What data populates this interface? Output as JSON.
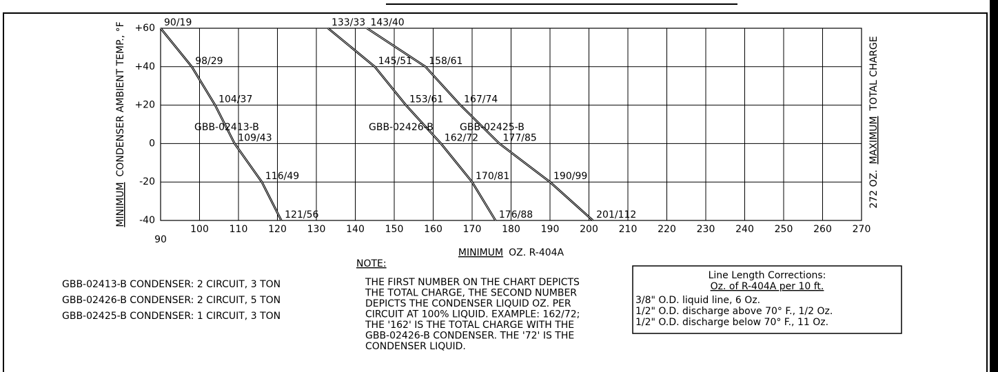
{
  "chart_data": {
    "type": "line",
    "y_label_underlined": "MINIMUM",
    "y_label_rest": "CONDENSER AMBIENT TEMP., °F",
    "y2_label_start": "272 OZ.",
    "y2_label_underlined": "MAXIMUM",
    "y2_label_end": "TOTAL CHARGE",
    "x_label_underlined": "MINIMUM",
    "x_label_rest": "OZ. R-404A",
    "xlim": [
      90,
      270
    ],
    "xticks": [
      90,
      100,
      110,
      120,
      130,
      140,
      150,
      160,
      170,
      180,
      190,
      200,
      210,
      220,
      230,
      240,
      250,
      260,
      270
    ],
    "ylim": [
      -40,
      60
    ],
    "yticks": [
      {
        "value": 60,
        "label": "+60"
      },
      {
        "value": 40,
        "label": "+40"
      },
      {
        "value": 20,
        "label": "+20"
      },
      0,
      -20,
      -40
    ],
    "grid": true,
    "color": "#000000",
    "series": [
      {
        "name": "GBB-02413-B",
        "x": [
          90,
          98,
          104,
          109,
          116,
          121
        ],
        "values": [
          60,
          40,
          20,
          0,
          -20,
          -40
        ],
        "point_labels": [
          "90/19",
          "98/29",
          "104/37",
          "109/43",
          "116/49",
          "121/56"
        ]
      },
      {
        "name": "GBB-02426-B",
        "x": [
          133,
          145,
          153,
          162,
          170,
          176
        ],
        "values": [
          60,
          40,
          20,
          0,
          -20,
          -40
        ],
        "point_labels": [
          "133/33",
          "145/51",
          "153/61",
          "162/72",
          "170/81",
          "176/88"
        ]
      },
      {
        "name": "GBB-02425-B",
        "x": [
          143,
          158,
          167,
          177,
          190,
          201
        ],
        "values": [
          60,
          40,
          20,
          0,
          -20,
          -40
        ],
        "point_labels": [
          "143/40",
          "158/61",
          "167/74",
          "177/85",
          "190/99",
          "201/112"
        ]
      }
    ],
    "condensers": [
      "GBB-02413-B CONDENSER: 2 CIRCUIT, 3 TON",
      "GBB-02426-B CONDENSER: 2 CIRCUIT, 5 TON",
      "GBB-02425-B CONDENSER: 1 CIRCUIT, 3 TON"
    ],
    "note_title": "NOTE:",
    "note_lines": [
      "THE FIRST NUMBER ON THE CHART DEPICTS",
      "THE TOTAL CHARGE, THE SECOND NUMBER",
      "DEPICTS THE CONDENSER LIQUID OZ. PER",
      "CIRCUIT AT 100% LIQUID. EXAMPLE: 162/72;",
      "THE '162' IS THE TOTAL CHARGE WITH THE",
      "GBB-02426-B CONDENSER. THE '72' IS THE",
      "CONDENSER LIQUID."
    ],
    "corrections_title": "Line Length Corrections:",
    "corrections_subtitle": "Oz. of R-404A per 10 ft.",
    "corrections": [
      "3/8\" O.D. liquid line, 6 Oz.",
      "1/2\" O.D. discharge above 70° F., 1/2 Oz.",
      "1/2\" O.D. discharge below 70° F., 11 Oz."
    ]
  }
}
